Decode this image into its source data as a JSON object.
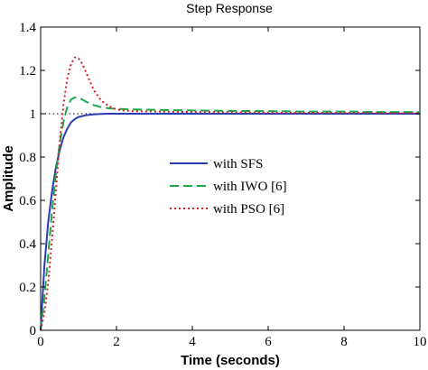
{
  "chart_data": {
    "type": "line",
    "title": "Step Response",
    "xlabel": "Time (seconds)",
    "ylabel": "Amplitude",
    "xlim": [
      0,
      10
    ],
    "ylim": [
      0,
      1.4
    ],
    "xticks": [
      0,
      2,
      4,
      6,
      8,
      10
    ],
    "yticks": [
      0,
      0.2,
      0.4,
      0.6,
      0.8,
      1,
      1.2,
      1.4
    ],
    "xtick_labels": [
      "0",
      "2",
      "4",
      "6",
      "8",
      "10"
    ],
    "ytick_labels": [
      "0",
      "0.2",
      "0.4",
      "0.6",
      "0.8",
      "1",
      "1.2",
      "1.4"
    ],
    "reference_line": {
      "y": 1,
      "style": "dotted",
      "color": "#000000"
    },
    "grid": false,
    "legend_position": "center",
    "series": [
      {
        "name": "with SFS",
        "color": "#2a3cb0",
        "style": "solid",
        "x": [
          0,
          0.1,
          0.2,
          0.3,
          0.4,
          0.5,
          0.6,
          0.7,
          0.8,
          0.9,
          1.0,
          1.2,
          1.4,
          1.6,
          1.8,
          2.0,
          3,
          4,
          5,
          6,
          7,
          8,
          9,
          10
        ],
        "y": [
          0,
          0.3,
          0.5,
          0.64,
          0.75,
          0.83,
          0.89,
          0.93,
          0.96,
          0.975,
          0.985,
          0.993,
          0.997,
          0.999,
          1.0,
          1.0,
          1.0,
          1.0,
          1.0,
          1.0,
          1.0,
          1.0,
          1.0,
          1.0
        ]
      },
      {
        "name": "with IWO [6]",
        "color": "#1aa84a",
        "style": "dashed",
        "x": [
          0,
          0.1,
          0.2,
          0.3,
          0.4,
          0.5,
          0.6,
          0.7,
          0.8,
          0.9,
          1.0,
          1.1,
          1.2,
          1.4,
          1.6,
          1.8,
          2.0,
          2.4,
          3,
          4,
          5,
          6,
          7,
          8,
          9,
          10
        ],
        "y": [
          0,
          0.15,
          0.35,
          0.55,
          0.72,
          0.86,
          0.96,
          1.03,
          1.065,
          1.075,
          1.073,
          1.065,
          1.055,
          1.04,
          1.03,
          1.025,
          1.022,
          1.02,
          1.018,
          1.015,
          1.013,
          1.012,
          1.01,
          1.01,
          1.008,
          1.008
        ]
      },
      {
        "name": "with PSO [6]",
        "color": "#d42020",
        "style": "dotted",
        "x": [
          0,
          0.1,
          0.2,
          0.3,
          0.4,
          0.5,
          0.6,
          0.7,
          0.8,
          0.9,
          1.0,
          1.1,
          1.2,
          1.3,
          1.4,
          1.6,
          1.8,
          2.0,
          2.2,
          2.4,
          3,
          4,
          5,
          6,
          7,
          8,
          9,
          10
        ],
        "y": [
          0,
          0.08,
          0.22,
          0.42,
          0.64,
          0.86,
          1.04,
          1.16,
          1.23,
          1.26,
          1.255,
          1.23,
          1.19,
          1.15,
          1.11,
          1.06,
          1.035,
          1.02,
          1.015,
          1.012,
          1.01,
          1.008,
          1.006,
          1.005,
          1.004,
          1.004,
          1.003,
          1.003
        ]
      }
    ]
  }
}
